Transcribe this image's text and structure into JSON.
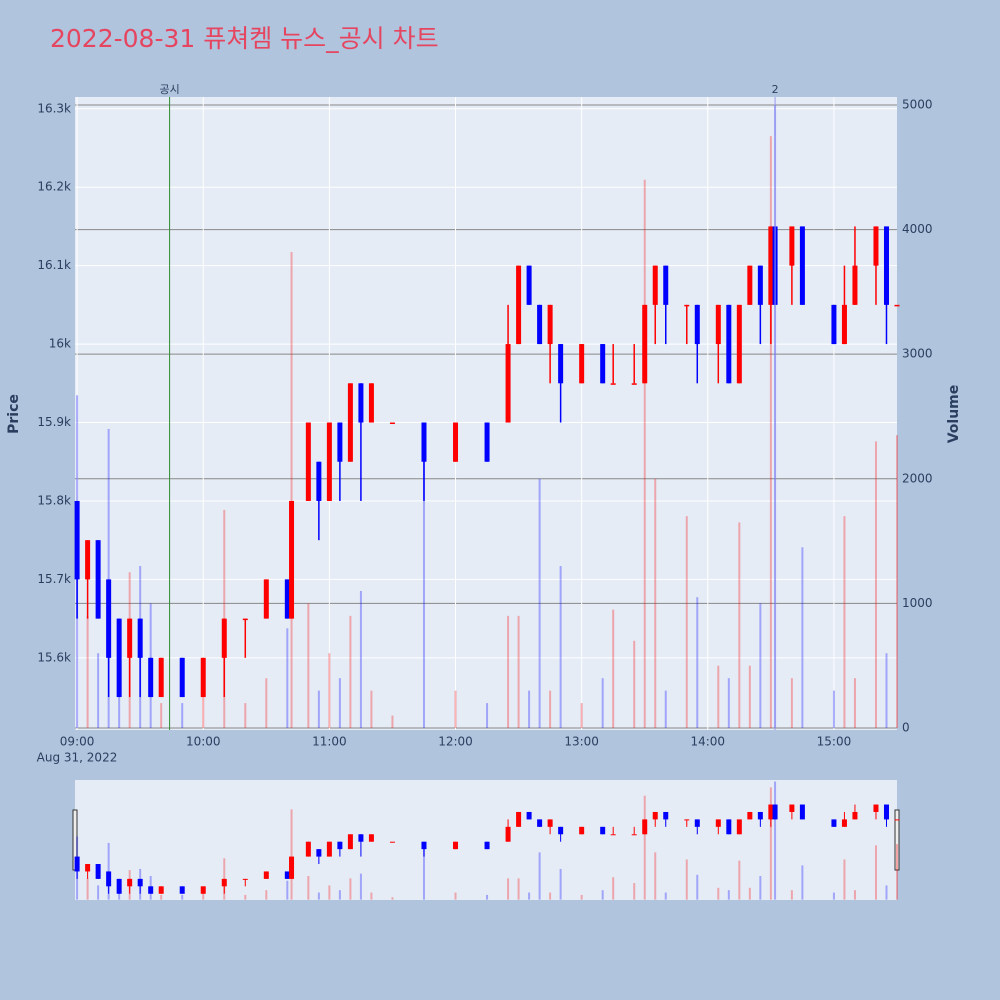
{
  "chart_data": {
    "type": "candlestick",
    "title": "2022-08-31 퓨쳐켐 뉴스_공시 차트",
    "date_label": "Aug 31, 2022",
    "y_label": "Price",
    "y2_label": "Volume",
    "x": [
      "09:00",
      "09:05",
      "09:10",
      "09:15",
      "09:20",
      "09:25",
      "09:30",
      "09:35",
      "09:40",
      "09:50",
      "10:00",
      "10:10",
      "10:20",
      "10:30",
      "10:40",
      "10:42",
      "10:50",
      "10:55",
      "11:00",
      "11:05",
      "11:10",
      "11:15",
      "11:20",
      "11:30",
      "11:45",
      "12:00",
      "12:15",
      "12:25",
      "12:30",
      "12:35",
      "12:40",
      "12:45",
      "12:50",
      "13:00",
      "13:10",
      "13:15",
      "13:25",
      "13:30",
      "13:35",
      "13:40",
      "13:50",
      "13:55",
      "14:05",
      "14:10",
      "14:15",
      "14:20",
      "14:25",
      "14:30",
      "14:32",
      "14:40",
      "14:45",
      "15:00",
      "15:05",
      "15:10",
      "15:20",
      "15:25",
      "15:30"
    ],
    "open": [
      15800,
      15700,
      15750,
      15700,
      15650,
      15600,
      15650,
      15600,
      15550,
      15600,
      15550,
      15600,
      15650,
      15650,
      15700,
      15650,
      15800,
      15850,
      15800,
      15900,
      15850,
      15950,
      15900,
      15900,
      15900,
      15850,
      15900,
      15900,
      16000,
      16100,
      16050,
      16000,
      16000,
      15950,
      16000,
      15950,
      15950,
      15950,
      16050,
      16100,
      16050,
      16050,
      16000,
      16050,
      15950,
      16050,
      16100,
      16050,
      16150,
      16100,
      16150,
      16050,
      16000,
      16050,
      16100,
      16150,
      16050
    ],
    "high": [
      15800,
      15750,
      15750,
      15700,
      15650,
      15650,
      15650,
      15600,
      15600,
      15600,
      15600,
      15650,
      15650,
      15700,
      15700,
      15800,
      15900,
      15850,
      15900,
      15900,
      15950,
      15950,
      15950,
      15900,
      15900,
      15900,
      15900,
      16050,
      16100,
      16100,
      16050,
      16050,
      16000,
      16000,
      16000,
      16000,
      16000,
      16050,
      16100,
      16100,
      16050,
      16050,
      16050,
      16050,
      16050,
      16100,
      16100,
      16150,
      16150,
      16150,
      16150,
      16050,
      16100,
      16150,
      16150,
      16150,
      16050
    ],
    "low": [
      15650,
      15650,
      15650,
      15550,
      15550,
      15550,
      15550,
      15550,
      15550,
      15550,
      15550,
      15550,
      15600,
      15650,
      15650,
      15650,
      15800,
      15750,
      15800,
      15800,
      15850,
      15800,
      15900,
      15900,
      15800,
      15850,
      15850,
      15900,
      16000,
      16050,
      16000,
      15950,
      15900,
      15950,
      15950,
      15950,
      15950,
      15950,
      16000,
      16000,
      16000,
      15950,
      15950,
      15950,
      15950,
      16050,
      16000,
      16000,
      16050,
      16050,
      16050,
      16000,
      16000,
      16050,
      16050,
      16000,
      16050
    ],
    "close": [
      15700,
      15750,
      15650,
      15600,
      15550,
      15650,
      15600,
      15550,
      15600,
      15550,
      15600,
      15650,
      15650,
      15700,
      15650,
      15800,
      15900,
      15800,
      15900,
      15850,
      15950,
      15900,
      15950,
      15900,
      15850,
      15900,
      15850,
      16000,
      16100,
      16050,
      16000,
      16050,
      15950,
      16000,
      15950,
      15950,
      15950,
      16050,
      16100,
      16050,
      16050,
      16000,
      16050,
      15950,
      16050,
      16100,
      16050,
      16150,
      16050,
      16150,
      16050,
      16000,
      16050,
      16100,
      16150,
      16050,
      16050
    ],
    "volume": [
      2670,
      900,
      600,
      2400,
      500,
      1250,
      1300,
      1000,
      200,
      200,
      300,
      1750,
      200,
      400,
      800,
      3820,
      1000,
      300,
      600,
      400,
      900,
      1100,
      300,
      100,
      2200,
      300,
      200,
      900,
      900,
      300,
      2000,
      300,
      1300,
      200,
      400,
      950,
      700,
      4400,
      2000,
      300,
      1700,
      1050,
      500,
      400,
      1650,
      500,
      1000,
      4750,
      5000,
      400,
      1450,
      300,
      1700,
      400,
      2300,
      600,
      2350
    ],
    "up_color": "#ff0000",
    "down_color": "#0000ff",
    "xlim": [
      "08:59",
      "15:30"
    ],
    "xticks": [
      "09:00",
      "10:00",
      "11:00",
      "12:00",
      "13:00",
      "14:00",
      "15:00"
    ],
    "ylim": [
      15508,
      16315
    ],
    "yticks": [
      {
        "value": 15600,
        "label": "15.6k"
      },
      {
        "value": 15700,
        "label": "15.7k"
      },
      {
        "value": 15800,
        "label": "15.8k"
      },
      {
        "value": 15900,
        "label": "15.9k"
      },
      {
        "value": 16000,
        "label": "16k"
      },
      {
        "value": 16100,
        "label": "16.1k"
      },
      {
        "value": 16200,
        "label": "16.2k"
      },
      {
        "value": 16300,
        "label": "16.3k"
      }
    ],
    "y2lim": [
      -16,
      5064
    ],
    "y2ticks": [
      0,
      1000,
      2000,
      3000,
      4000,
      5000
    ],
    "annotations": [
      {
        "x": "09:44",
        "text": "공시",
        "color": "#2e8b2e"
      },
      {
        "x": "14:32",
        "text": "2",
        "color": "#9999ee"
      }
    ]
  }
}
